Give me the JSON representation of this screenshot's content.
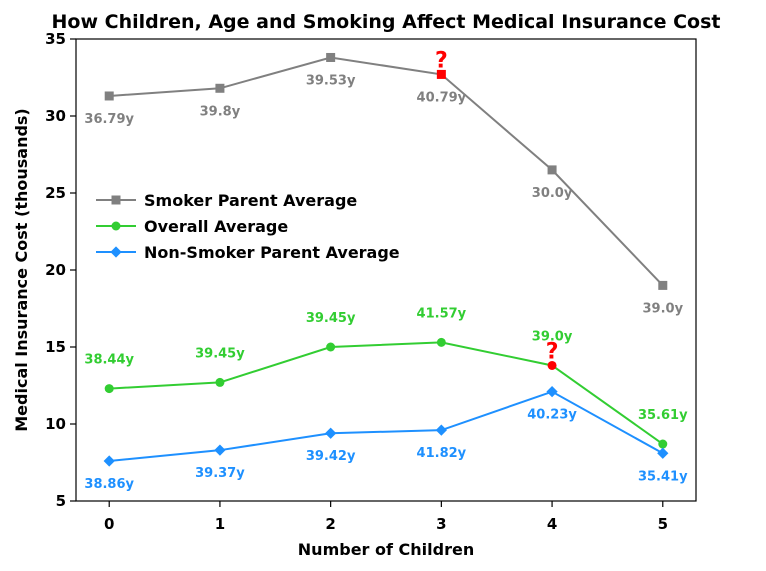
{
  "chart_data": {
    "type": "line",
    "title": "How Children, Age and Smoking Affect Medical Insurance Cost",
    "xlabel": "Number of Children",
    "ylabel": "Medical Insurance Cost (thousands)",
    "x": [
      0,
      1,
      2,
      3,
      4,
      5
    ],
    "xlim": [
      -0.3,
      5.3
    ],
    "ylim": [
      5,
      35
    ],
    "xticks": [
      "0",
      "1",
      "2",
      "3",
      "4",
      "5"
    ],
    "yticks": [
      "5",
      "10",
      "15",
      "20",
      "25",
      "30",
      "35"
    ],
    "grid": false,
    "legend_position": "center-left",
    "series": [
      {
        "name": "Smoker Parent Average",
        "marker": "square",
        "color": "#808080",
        "values": [
          31.3,
          31.8,
          33.8,
          32.7,
          26.5,
          19.0
        ],
        "labels": [
          "36.79y",
          "39.8y",
          "39.53y",
          "40.79y",
          "30.0y",
          "39.0y"
        ],
        "label_position": "below",
        "flagged_index": 3
      },
      {
        "name": "Overall Average",
        "marker": "circle",
        "color": "#32cd32",
        "values": [
          12.3,
          12.7,
          15.0,
          15.3,
          13.8,
          8.7
        ],
        "labels": [
          "38.44y",
          "39.45y",
          "39.45y",
          "41.57y",
          "39.0y",
          "35.61y"
        ],
        "label_position": "above",
        "flagged_index": 4
      },
      {
        "name": "Non-Smoker Parent Average",
        "marker": "diamond",
        "color": "#1e90ff",
        "values": [
          7.6,
          8.3,
          9.4,
          9.6,
          12.1,
          8.1
        ],
        "labels": [
          "38.86y",
          "39.37y",
          "39.42y",
          "41.82y",
          "40.23y",
          "35.41y"
        ],
        "label_position": "below",
        "flagged_index": null
      }
    ],
    "annotations": [
      {
        "text": "?",
        "series": 0,
        "x": 3,
        "color": "#ff0000"
      },
      {
        "text": "?",
        "series": 1,
        "x": 4,
        "color": "#ff0000"
      }
    ]
  }
}
